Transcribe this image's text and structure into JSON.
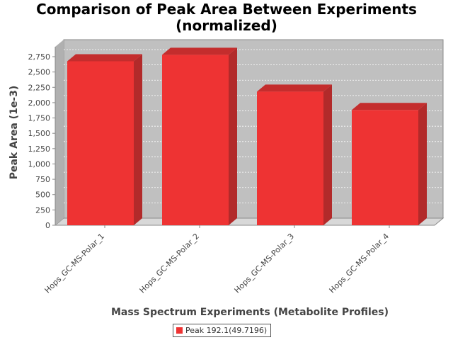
{
  "chart_data": {
    "type": "bar",
    "title": [
      "Comparison of Peak Area Between Experiments",
      "(normalized)"
    ],
    "xlabel": "Mass Spectrum Experiments (Metabolite Profiles)",
    "ylabel": "Peak Area (1e-3)",
    "categories": [
      "Hops_GC-MS-Polar_1",
      "Hops_GC-MS-Polar_2",
      "Hops_GC-MS-Polar_3",
      "Hops_GC-MS-Polar_4"
    ],
    "series": [
      {
        "name": "Peak 192.1(49.7196)",
        "values": [
          2675,
          2780,
          2180,
          1880
        ]
      }
    ],
    "ylim": [
      0,
      2750
    ],
    "yticks": [
      0,
      250,
      500,
      750,
      1000,
      1250,
      1500,
      1750,
      2000,
      2250,
      2500,
      2750
    ],
    "ytick_labels": [
      "0",
      "250",
      "500",
      "750",
      "1,000",
      "1,250",
      "1,500",
      "1,750",
      "2,000",
      "2,250",
      "2,500",
      "2,750"
    ],
    "grid": true,
    "legend_position": "bottom",
    "colors": {
      "bar_front": "#ee3333",
      "bar_side": "#b22a2a",
      "bar_top": "#c42d2d",
      "plot_bg": "#c0c0c0"
    }
  }
}
